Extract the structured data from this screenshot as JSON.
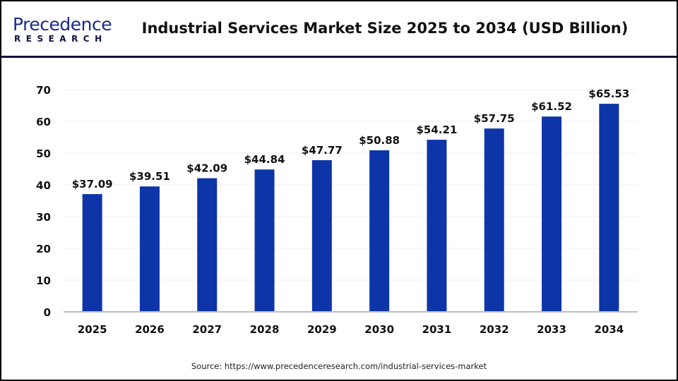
{
  "logo": {
    "main": "Precedence",
    "sub": "RESEARCH"
  },
  "title": "Industrial Services Market Size 2025 to 2034 (USD Billion)",
  "source": "Source: https://www.precedenceresearch.com/industrial-services-market",
  "colors": {
    "bar": "#0d35a8",
    "header_line": "#0b1440",
    "axis": "#bdbdbd",
    "grid": "#eeeeee"
  },
  "chart_data": {
    "type": "bar",
    "title": "Industrial Services Market Size 2025 to 2034 (USD Billion)",
    "xlabel": "",
    "ylabel": "",
    "categories": [
      "2025",
      "2026",
      "2027",
      "2028",
      "2029",
      "2030",
      "2031",
      "2032",
      "2033",
      "2034"
    ],
    "values": [
      37.09,
      39.51,
      42.09,
      44.84,
      47.77,
      50.88,
      54.21,
      57.75,
      61.52,
      65.53
    ],
    "data_labels": [
      "$37.09",
      "$39.51",
      "$42.09",
      "$44.84",
      "$47.77",
      "$50.88",
      "$54.21",
      "$57.75",
      "$61.52",
      "$65.53"
    ],
    "ylim": [
      0,
      70
    ],
    "yticks": [
      0,
      10,
      20,
      30,
      40,
      50,
      60,
      70
    ],
    "grid": true
  }
}
